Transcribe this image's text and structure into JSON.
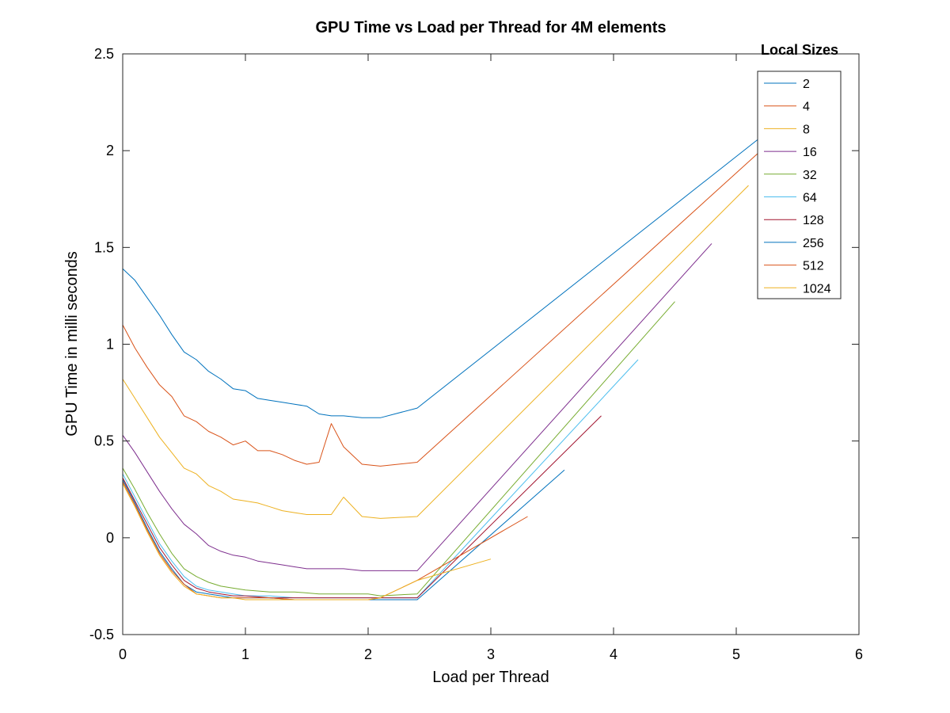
{
  "chart_data": {
    "type": "line",
    "title": "GPU Time vs Load per Thread for 4M elements",
    "xlabel": "Load per Thread",
    "ylabel": "GPU Time in milli seconds",
    "xlim": [
      0,
      6
    ],
    "ylim": [
      -0.5,
      2.5
    ],
    "xticks": [
      0,
      1,
      2,
      3,
      4,
      5,
      6
    ],
    "xtick_labels": [
      "0",
      "1",
      "2",
      "3",
      "4",
      "5",
      "6"
    ],
    "yticks": [
      -0.5,
      0,
      0.5,
      1,
      1.5,
      2,
      2.5
    ],
    "ytick_labels": [
      "-0.5",
      "0",
      "0.5",
      "1",
      "1.5",
      "2",
      "2.5"
    ],
    "grid": false,
    "legend": {
      "title": "Local Sizes",
      "placement": "top-right"
    },
    "series": [
      {
        "name": "2",
        "color": "#0072bd",
        "x": [
          0.0,
          0.1,
          0.2,
          0.3,
          0.4,
          0.5,
          0.6,
          0.7,
          0.8,
          0.9,
          1.0,
          1.1,
          1.2,
          1.3,
          1.4,
          1.5,
          1.6,
          1.7,
          1.8,
          1.95,
          2.1,
          2.4,
          5.2
        ],
        "y": [
          1.39,
          1.33,
          1.24,
          1.15,
          1.05,
          0.96,
          0.92,
          0.86,
          0.82,
          0.77,
          0.76,
          0.72,
          0.71,
          0.7,
          0.69,
          0.68,
          0.64,
          0.63,
          0.63,
          0.62,
          0.62,
          0.67,
          2.07
        ]
      },
      {
        "name": "4",
        "color": "#d95319",
        "x": [
          0.0,
          0.1,
          0.2,
          0.3,
          0.4,
          0.5,
          0.6,
          0.7,
          0.8,
          0.9,
          1.0,
          1.1,
          1.2,
          1.3,
          1.4,
          1.5,
          1.6,
          1.7,
          1.8,
          1.95,
          2.1,
          2.4,
          5.2
        ],
        "y": [
          1.1,
          0.98,
          0.88,
          0.79,
          0.73,
          0.63,
          0.6,
          0.55,
          0.52,
          0.48,
          0.5,
          0.45,
          0.45,
          0.43,
          0.4,
          0.38,
          0.39,
          0.59,
          0.47,
          0.38,
          0.37,
          0.39,
          2.0
        ]
      },
      {
        "name": "8",
        "color": "#edb120",
        "x": [
          0.0,
          0.1,
          0.2,
          0.3,
          0.4,
          0.5,
          0.6,
          0.7,
          0.8,
          0.9,
          1.0,
          1.1,
          1.2,
          1.3,
          1.4,
          1.5,
          1.6,
          1.7,
          1.8,
          1.95,
          2.1,
          2.4,
          5.1
        ],
        "y": [
          0.82,
          0.72,
          0.62,
          0.52,
          0.44,
          0.36,
          0.33,
          0.27,
          0.24,
          0.2,
          0.19,
          0.18,
          0.16,
          0.14,
          0.13,
          0.12,
          0.12,
          0.12,
          0.21,
          0.11,
          0.1,
          0.11,
          1.82
        ]
      },
      {
        "name": "16",
        "color": "#7e2f8e",
        "x": [
          0.0,
          0.1,
          0.2,
          0.3,
          0.4,
          0.5,
          0.6,
          0.7,
          0.8,
          0.9,
          1.0,
          1.1,
          1.2,
          1.3,
          1.4,
          1.5,
          1.6,
          1.7,
          1.8,
          1.95,
          2.1,
          2.4,
          4.8
        ],
        "y": [
          0.53,
          0.44,
          0.34,
          0.24,
          0.15,
          0.07,
          0.02,
          -0.04,
          -0.07,
          -0.09,
          -0.1,
          -0.12,
          -0.13,
          -0.14,
          -0.15,
          -0.16,
          -0.16,
          -0.16,
          -0.16,
          -0.17,
          -0.17,
          -0.17,
          1.52
        ]
      },
      {
        "name": "32",
        "color": "#77ac30",
        "x": [
          0.0,
          0.1,
          0.2,
          0.3,
          0.4,
          0.5,
          0.6,
          0.7,
          0.8,
          0.9,
          1.0,
          1.2,
          1.4,
          1.6,
          1.8,
          2.0,
          2.1,
          2.4,
          4.5
        ],
        "y": [
          0.36,
          0.25,
          0.13,
          0.02,
          -0.08,
          -0.16,
          -0.2,
          -0.23,
          -0.25,
          -0.26,
          -0.27,
          -0.28,
          -0.28,
          -0.29,
          -0.29,
          -0.29,
          -0.3,
          -0.29,
          1.22
        ]
      },
      {
        "name": "64",
        "color": "#4dbeee",
        "x": [
          0.0,
          0.1,
          0.2,
          0.3,
          0.4,
          0.5,
          0.6,
          0.7,
          0.8,
          0.9,
          1.0,
          1.2,
          1.4,
          1.6,
          1.8,
          2.0,
          2.1,
          2.4,
          4.2
        ],
        "y": [
          0.33,
          0.21,
          0.09,
          -0.03,
          -0.12,
          -0.2,
          -0.25,
          -0.27,
          -0.28,
          -0.29,
          -0.3,
          -0.3,
          -0.31,
          -0.31,
          -0.31,
          -0.31,
          -0.31,
          -0.31,
          0.92
        ]
      },
      {
        "name": "128",
        "color": "#a2142f",
        "x": [
          0.0,
          0.1,
          0.2,
          0.3,
          0.4,
          0.5,
          0.6,
          0.7,
          0.8,
          0.9,
          1.0,
          1.2,
          1.4,
          1.6,
          1.8,
          2.0,
          2.1,
          2.4,
          3.9
        ],
        "y": [
          0.31,
          0.19,
          0.07,
          -0.05,
          -0.14,
          -0.22,
          -0.26,
          -0.28,
          -0.29,
          -0.3,
          -0.3,
          -0.31,
          -0.31,
          -0.31,
          -0.31,
          -0.31,
          -0.31,
          -0.31,
          0.63
        ]
      },
      {
        "name": "256",
        "color": "#0072bd",
        "x": [
          0.0,
          0.1,
          0.2,
          0.3,
          0.4,
          0.5,
          0.6,
          0.7,
          0.8,
          0.9,
          1.0,
          1.2,
          1.4,
          1.6,
          1.8,
          2.0,
          2.1,
          2.4,
          3.6
        ],
        "y": [
          0.3,
          0.18,
          0.05,
          -0.07,
          -0.16,
          -0.24,
          -0.28,
          -0.29,
          -0.3,
          -0.31,
          -0.31,
          -0.31,
          -0.32,
          -0.32,
          -0.32,
          -0.32,
          -0.32,
          -0.32,
          0.35
        ]
      },
      {
        "name": "512",
        "color": "#d95319",
        "x": [
          0.0,
          0.1,
          0.2,
          0.3,
          0.4,
          0.5,
          0.6,
          0.7,
          0.8,
          0.9,
          1.0,
          1.2,
          1.4,
          1.6,
          1.8,
          2.0,
          2.1,
          2.4,
          3.3
        ],
        "y": [
          0.29,
          0.17,
          0.04,
          -0.08,
          -0.17,
          -0.24,
          -0.29,
          -0.3,
          -0.31,
          -0.31,
          -0.31,
          -0.31,
          -0.32,
          -0.32,
          -0.32,
          -0.32,
          -0.31,
          -0.22,
          0.11
        ]
      },
      {
        "name": "1024",
        "color": "#edb120",
        "x": [
          0.0,
          0.1,
          0.2,
          0.3,
          0.4,
          0.5,
          0.6,
          0.7,
          0.8,
          0.9,
          1.0,
          1.2,
          1.4,
          1.6,
          1.8,
          2.0,
          2.1,
          2.4,
          3.0
        ],
        "y": [
          0.28,
          0.16,
          0.03,
          -0.09,
          -0.18,
          -0.25,
          -0.29,
          -0.3,
          -0.31,
          -0.31,
          -0.32,
          -0.32,
          -0.32,
          -0.32,
          -0.32,
          -0.32,
          -0.31,
          -0.22,
          -0.11
        ]
      }
    ]
  }
}
